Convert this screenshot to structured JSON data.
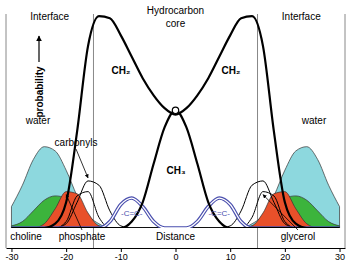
{
  "chart_data": {
    "type": "line",
    "x_label": "Distance",
    "y_label": "probability",
    "annotations": [
      "Interface",
      "Hydrocarbon",
      "core",
      "Interface"
    ],
    "boundaries": [
      -15,
      15
    ],
    "xlim": [
      -31,
      31
    ],
    "ylim": [
      0,
      1
    ],
    "xticks": [
      -30,
      -20,
      -10,
      0,
      10,
      20,
      30
    ],
    "tick_labels": "x",
    "x": [
      -30,
      -28,
      -26,
      -24,
      -22,
      -20,
      -18,
      -16,
      -14,
      -12,
      -10,
      -8,
      -6,
      -4,
      -2,
      0,
      2,
      4,
      6,
      8,
      10,
      12,
      14,
      16,
      18,
      20,
      22,
      24,
      26,
      28,
      30
    ],
    "series": [
      {
        "name": "water",
        "type": "area",
        "color": "#8dd8de",
        "values": [
          0.1,
          0.2,
          0.32,
          0.38,
          0.36,
          0.27,
          0.15,
          0.06,
          0.02,
          0,
          0,
          0,
          0,
          0,
          0,
          0,
          0,
          0,
          0,
          0,
          0,
          0,
          0.02,
          0.06,
          0.15,
          0.27,
          0.36,
          0.38,
          0.32,
          0.2,
          0.1
        ]
      },
      {
        "name": "choline",
        "type": "area",
        "color": "#3cb43c",
        "values": [
          0.01,
          0.03,
          0.08,
          0.13,
          0.15,
          0.14,
          0.09,
          0.04,
          0.01,
          0,
          0,
          0,
          0,
          0,
          0,
          0,
          0,
          0,
          0,
          0,
          0,
          0,
          0.01,
          0.04,
          0.09,
          0.14,
          0.15,
          0.13,
          0.08,
          0.03,
          0.01
        ]
      },
      {
        "name": "phosphate",
        "type": "area",
        "color": "#e8502a",
        "values": [
          0,
          0,
          0,
          0.02,
          0.09,
          0.17,
          0.16,
          0.07,
          0.01,
          0,
          0,
          0,
          0,
          0,
          0,
          0,
          0,
          0,
          0,
          0,
          0,
          0,
          0.01,
          0.07,
          0.16,
          0.17,
          0.09,
          0.02,
          0,
          0,
          0
        ]
      },
      {
        "name": "carbonyls",
        "type": "line",
        "color": "#000000",
        "values": [
          0,
          0,
          0,
          0,
          0,
          0.02,
          0.12,
          0.22,
          0.2,
          0.08,
          0.01,
          0,
          0,
          0,
          0,
          0,
          0,
          0,
          0,
          0,
          0.01,
          0.08,
          0.2,
          0.22,
          0.12,
          0.02,
          0,
          0,
          0,
          0,
          0
        ]
      },
      {
        "name": "glycerol",
        "type": "line",
        "color": "#000000",
        "values": [
          0,
          0,
          0,
          0,
          0,
          0.03,
          0.15,
          0.17,
          0.05,
          0,
          0,
          0,
          0,
          0,
          0,
          0,
          0,
          0,
          0,
          0,
          0,
          0,
          0.05,
          0.17,
          0.15,
          0.03,
          0,
          0,
          0,
          0,
          0
        ]
      },
      {
        "name": "-C=C-",
        "type": "line",
        "color": "#4a4fae",
        "line_style": "double",
        "values": [
          0,
          0,
          0,
          0,
          0,
          0,
          0,
          0,
          0,
          0.03,
          0.11,
          0.14,
          0.1,
          0.03,
          0,
          0,
          0,
          0.03,
          0.1,
          0.14,
          0.11,
          0.03,
          0,
          0,
          0,
          0,
          0,
          0,
          0,
          0,
          0
        ]
      },
      {
        "name": "CH₂",
        "type": "line",
        "color": "#000000",
        "values": [
          0,
          0,
          0,
          0,
          0.02,
          0.12,
          0.45,
          0.85,
          0.99,
          0.98,
          0.9,
          0.8,
          0.7,
          0.62,
          0.56,
          0.53,
          0.56,
          0.62,
          0.7,
          0.8,
          0.9,
          0.98,
          0.99,
          0.85,
          0.45,
          0.12,
          0.02,
          0,
          0,
          0,
          0
        ]
      },
      {
        "name": "CH₃",
        "type": "line",
        "color": "#000000",
        "values": [
          0,
          0,
          0,
          0,
          0,
          0,
          0,
          0,
          0,
          0,
          0,
          0.03,
          0.12,
          0.3,
          0.47,
          0.55,
          0.47,
          0.3,
          0.12,
          0.03,
          0,
          0,
          0,
          0,
          0,
          0,
          0,
          0,
          0,
          0,
          0
        ]
      }
    ]
  }
}
